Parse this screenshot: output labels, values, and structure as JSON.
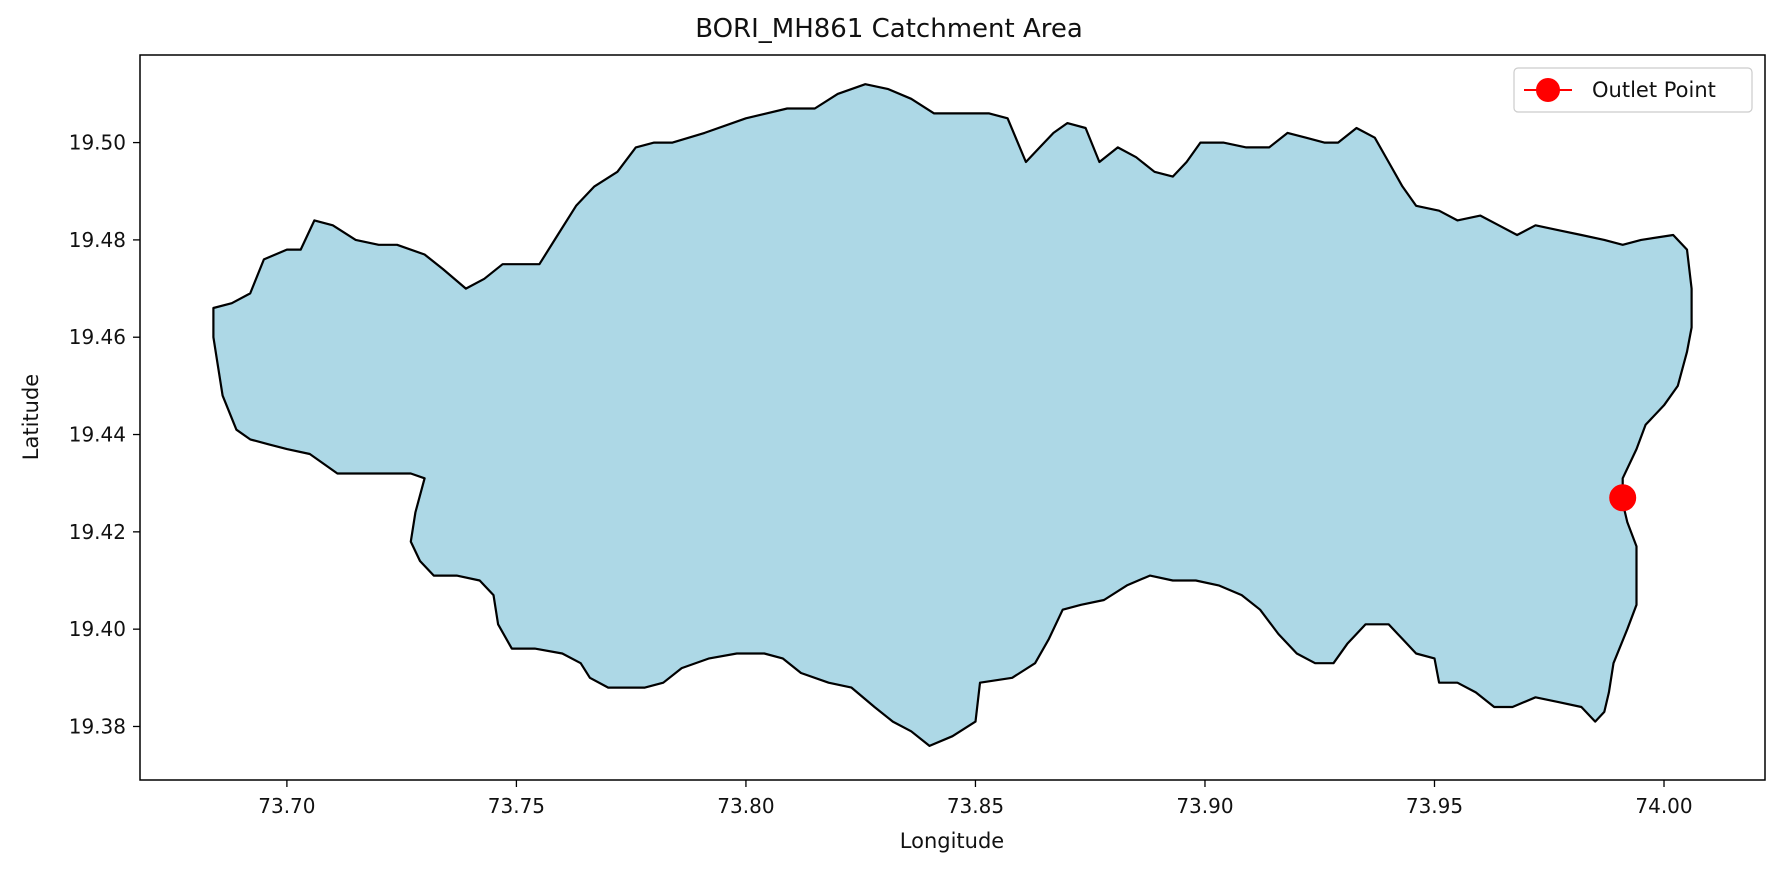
{
  "chart_data": {
    "type": "map",
    "title": "BORI_MH861 Catchment Area",
    "xlabel": "Longitude",
    "ylabel": "Latitude",
    "xlim": [
      73.668,
      74.022
    ],
    "ylim": [
      19.369,
      19.518
    ],
    "x_ticks": [
      73.7,
      73.75,
      73.8,
      73.85,
      73.9,
      73.95,
      74.0
    ],
    "x_tick_labels": [
      "73.70",
      "73.75",
      "73.80",
      "73.85",
      "73.90",
      "73.95",
      "74.00"
    ],
    "y_ticks": [
      19.38,
      19.4,
      19.42,
      19.44,
      19.46,
      19.48,
      19.5
    ],
    "y_tick_labels": [
      "19.38",
      "19.40",
      "19.42",
      "19.44",
      "19.46",
      "19.48",
      "19.50"
    ],
    "grid": false,
    "legend": {
      "placement": "top-right",
      "entries": [
        "Outlet Point"
      ]
    },
    "catchment": {
      "fill": "#add8e6",
      "edge": "#000000",
      "boundary": [
        [
          73.684,
          19.466
        ],
        [
          73.688,
          19.467
        ],
        [
          73.692,
          19.469
        ],
        [
          73.695,
          19.476
        ],
        [
          73.7,
          19.478
        ],
        [
          73.703,
          19.478
        ],
        [
          73.706,
          19.484
        ],
        [
          73.71,
          19.483
        ],
        [
          73.715,
          19.48
        ],
        [
          73.72,
          19.479
        ],
        [
          73.724,
          19.479
        ],
        [
          73.73,
          19.477
        ],
        [
          73.734,
          19.474
        ],
        [
          73.739,
          19.47
        ],
        [
          73.743,
          19.472
        ],
        [
          73.747,
          19.475
        ],
        [
          73.751,
          19.475
        ],
        [
          73.755,
          19.475
        ],
        [
          73.759,
          19.481
        ],
        [
          73.763,
          19.487
        ],
        [
          73.767,
          19.491
        ],
        [
          73.772,
          19.494
        ],
        [
          73.776,
          19.499
        ],
        [
          73.78,
          19.5
        ],
        [
          73.784,
          19.5
        ],
        [
          73.791,
          19.502
        ],
        [
          73.8,
          19.505
        ],
        [
          73.809,
          19.507
        ],
        [
          73.815,
          19.507
        ],
        [
          73.82,
          19.51
        ],
        [
          73.826,
          19.512
        ],
        [
          73.831,
          19.511
        ],
        [
          73.836,
          19.509
        ],
        [
          73.841,
          19.506
        ],
        [
          73.848,
          19.506
        ],
        [
          73.853,
          19.506
        ],
        [
          73.857,
          19.505
        ],
        [
          73.861,
          19.496
        ],
        [
          73.864,
          19.499
        ],
        [
          73.867,
          19.502
        ],
        [
          73.87,
          19.504
        ],
        [
          73.874,
          19.503
        ],
        [
          73.877,
          19.496
        ],
        [
          73.881,
          19.499
        ],
        [
          73.885,
          19.497
        ],
        [
          73.889,
          19.494
        ],
        [
          73.893,
          19.493
        ],
        [
          73.896,
          19.496
        ],
        [
          73.899,
          19.5
        ],
        [
          73.904,
          19.5
        ],
        [
          73.909,
          19.499
        ],
        [
          73.914,
          19.499
        ],
        [
          73.918,
          19.502
        ],
        [
          73.922,
          19.501
        ],
        [
          73.926,
          19.5
        ],
        [
          73.929,
          19.5
        ],
        [
          73.933,
          19.503
        ],
        [
          73.937,
          19.501
        ],
        [
          73.94,
          19.496
        ],
        [
          73.943,
          19.491
        ],
        [
          73.946,
          19.487
        ],
        [
          73.951,
          19.486
        ],
        [
          73.955,
          19.484
        ],
        [
          73.96,
          19.485
        ],
        [
          73.964,
          19.483
        ],
        [
          73.968,
          19.481
        ],
        [
          73.972,
          19.483
        ],
        [
          73.977,
          19.482
        ],
        [
          73.982,
          19.481
        ],
        [
          73.987,
          19.48
        ],
        [
          73.991,
          19.479
        ],
        [
          73.995,
          19.48
        ],
        [
          74.002,
          19.481
        ],
        [
          74.005,
          19.478
        ],
        [
          74.006,
          19.47
        ],
        [
          74.006,
          19.462
        ],
        [
          74.005,
          19.457
        ],
        [
          74.003,
          19.45
        ],
        [
          74.0,
          19.446
        ],
        [
          73.996,
          19.442
        ],
        [
          73.994,
          19.437
        ],
        [
          73.991,
          19.431
        ],
        [
          73.991,
          19.426
        ],
        [
          73.992,
          19.422
        ],
        [
          73.994,
          19.417
        ],
        [
          73.994,
          19.411
        ],
        [
          73.994,
          19.405
        ],
        [
          73.992,
          19.4
        ],
        [
          73.989,
          19.393
        ],
        [
          73.988,
          19.387
        ],
        [
          73.987,
          19.383
        ],
        [
          73.985,
          19.381
        ],
        [
          73.982,
          19.384
        ],
        [
          73.977,
          19.385
        ],
        [
          73.972,
          19.386
        ],
        [
          73.967,
          19.384
        ],
        [
          73.963,
          19.384
        ],
        [
          73.959,
          19.387
        ],
        [
          73.955,
          19.389
        ],
        [
          73.951,
          19.389
        ],
        [
          73.95,
          19.394
        ],
        [
          73.946,
          19.395
        ],
        [
          73.943,
          19.398
        ],
        [
          73.94,
          19.401
        ],
        [
          73.935,
          19.401
        ],
        [
          73.931,
          19.397
        ],
        [
          73.928,
          19.393
        ],
        [
          73.924,
          19.393
        ],
        [
          73.92,
          19.395
        ],
        [
          73.916,
          19.399
        ],
        [
          73.912,
          19.404
        ],
        [
          73.908,
          19.407
        ],
        [
          73.903,
          19.409
        ],
        [
          73.898,
          19.41
        ],
        [
          73.893,
          19.41
        ],
        [
          73.888,
          19.411
        ],
        [
          73.883,
          19.409
        ],
        [
          73.878,
          19.406
        ],
        [
          73.873,
          19.405
        ],
        [
          73.869,
          19.404
        ],
        [
          73.866,
          19.398
        ],
        [
          73.863,
          19.393
        ],
        [
          73.858,
          19.39
        ],
        [
          73.851,
          19.389
        ],
        [
          73.85,
          19.381
        ],
        [
          73.845,
          19.378
        ],
        [
          73.84,
          19.376
        ],
        [
          73.836,
          19.379
        ],
        [
          73.832,
          19.381
        ],
        [
          73.828,
          19.384
        ],
        [
          73.823,
          19.388
        ],
        [
          73.818,
          19.389
        ],
        [
          73.812,
          19.391
        ],
        [
          73.808,
          19.394
        ],
        [
          73.804,
          19.395
        ],
        [
          73.798,
          19.395
        ],
        [
          73.792,
          19.394
        ],
        [
          73.786,
          19.392
        ],
        [
          73.782,
          19.389
        ],
        [
          73.778,
          19.388
        ],
        [
          73.774,
          19.388
        ],
        [
          73.77,
          19.388
        ],
        [
          73.766,
          19.39
        ],
        [
          73.764,
          19.393
        ],
        [
          73.76,
          19.395
        ],
        [
          73.754,
          19.396
        ],
        [
          73.749,
          19.396
        ],
        [
          73.746,
          19.401
        ],
        [
          73.745,
          19.407
        ],
        [
          73.742,
          19.41
        ],
        [
          73.737,
          19.411
        ],
        [
          73.732,
          19.411
        ],
        [
          73.729,
          19.414
        ],
        [
          73.727,
          19.418
        ],
        [
          73.728,
          19.424
        ],
        [
          73.73,
          19.431
        ],
        [
          73.727,
          19.432
        ],
        [
          73.722,
          19.432
        ],
        [
          73.716,
          19.432
        ],
        [
          73.711,
          19.432
        ],
        [
          73.705,
          19.436
        ],
        [
          73.7,
          19.437
        ],
        [
          73.696,
          19.438
        ],
        [
          73.692,
          19.439
        ],
        [
          73.689,
          19.441
        ],
        [
          73.686,
          19.448
        ],
        [
          73.685,
          19.454
        ],
        [
          73.684,
          19.46
        ],
        [
          73.684,
          19.466
        ]
      ]
    },
    "outlet_point": {
      "label": "Outlet Point",
      "lon": 73.991,
      "lat": 19.427,
      "color": "#ff0000"
    }
  }
}
